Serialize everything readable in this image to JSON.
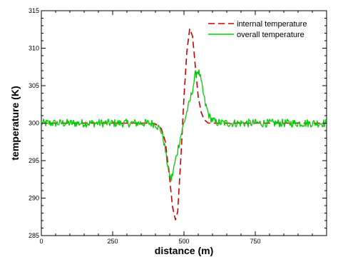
{
  "chart_data": {
    "type": "line",
    "title": "",
    "xlabel": "distance (m)",
    "ylabel": "temperature (K)",
    "xlim": [
      0,
      1000
    ],
    "ylim": [
      285,
      315
    ],
    "grid": false,
    "legend_position": "top-right",
    "x_ticks": [
      0,
      250,
      500,
      750
    ],
    "y_ticks": [
      285,
      290,
      295,
      300,
      305,
      310,
      315
    ],
    "x_tick_labels": [
      "0",
      "250",
      "500",
      "750"
    ],
    "y_tick_labels": [
      "285",
      "290",
      "295",
      "300",
      "305",
      "310",
      "315"
    ],
    "series": [
      {
        "name": "internal temperature",
        "color": "#cc0000",
        "style": "dashed",
        "x": [
          0,
          100,
          200,
          300,
          380,
          400,
          420,
          435,
          450,
          460,
          470,
          478,
          490,
          500,
          510,
          520,
          530,
          540,
          550,
          560,
          570,
          585,
          600,
          650,
          700,
          800,
          900,
          1000
        ],
        "y": [
          300,
          300,
          300,
          300,
          300,
          299.9,
          299.3,
          297.5,
          292.5,
          288.8,
          287.1,
          288.2,
          296,
          303.5,
          309.5,
          312.6,
          311.6,
          307.5,
          303.5,
          301.5,
          300.5,
          300,
          300,
          300,
          300,
          300,
          300,
          300
        ]
      },
      {
        "name": "overall temperature",
        "color": "#00cc00",
        "style": "solid",
        "noisy": true,
        "x": [
          0,
          100,
          200,
          300,
          380,
          400,
          420,
          430,
          440,
          450,
          455,
          460,
          470,
          480,
          490,
          500,
          510,
          520,
          530,
          540,
          548,
          555,
          565,
          575,
          590,
          610,
          650,
          700,
          800,
          900,
          1000
        ],
        "y": [
          300,
          300,
          300,
          300,
          300,
          299.9,
          299,
          297.5,
          295,
          293,
          292.5,
          293.2,
          295,
          296.8,
          298.5,
          300,
          301.5,
          302.8,
          304.5,
          306.5,
          307,
          306.5,
          304.5,
          302.5,
          300.8,
          300.1,
          300,
          300,
          300,
          300,
          300
        ]
      }
    ]
  }
}
